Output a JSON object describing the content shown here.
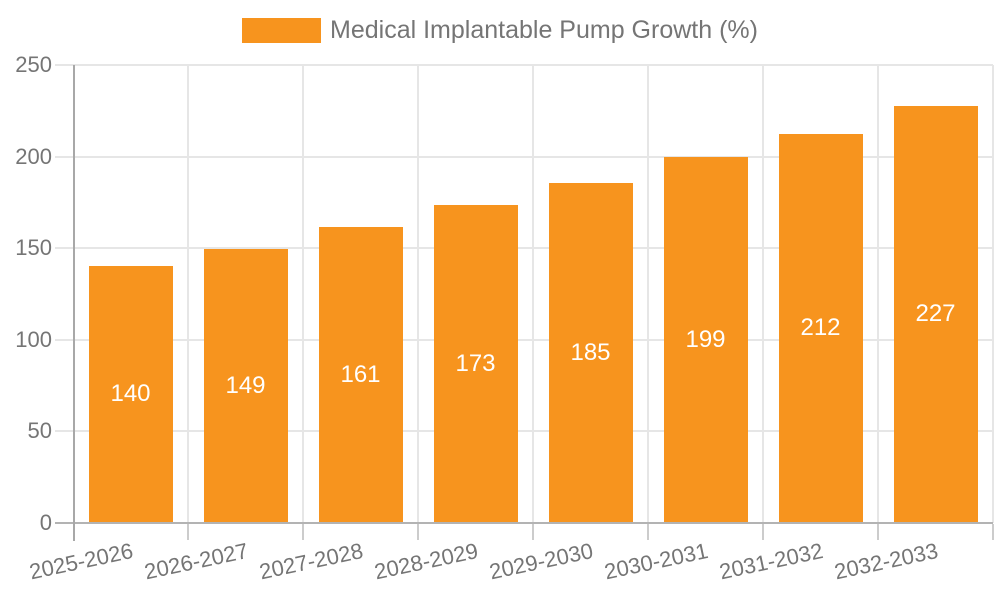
{
  "legend": {
    "label": "Medical Implantable Pump Growth (%)"
  },
  "chart_data": {
    "type": "bar",
    "title": "",
    "xlabel": "",
    "ylabel": "",
    "categories": [
      "2025-2026",
      "2026-2027",
      "2027-2028",
      "2028-2029",
      "2029-2030",
      "2030-2031",
      "2031-2032",
      "2032-2033"
    ],
    "values": [
      140,
      149,
      161,
      173,
      185,
      199,
      212,
      227
    ],
    "series_name": "Medical Implantable Pump Growth (%)",
    "bar_labels": [
      "140",
      "149",
      "161",
      "173",
      "185",
      "199",
      "212",
      "227"
    ],
    "ylim": [
      0,
      250
    ],
    "yticks": [
      0,
      50,
      100,
      150,
      200,
      250
    ],
    "grid": true,
    "legend_position": "top-center",
    "colors": {
      "bar": "#f7941e",
      "bar_label_text": "#ffffff",
      "axis_text": "#757575",
      "gridline": "#e6e6e6",
      "axis_line": "#b3b3b3"
    }
  }
}
